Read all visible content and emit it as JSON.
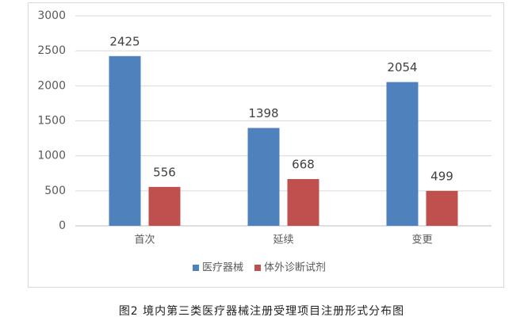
{
  "chart_data": {
    "type": "bar",
    "caption": "图2 境内第三类医疗器械注册受理项目注册形式分布图",
    "categories": [
      "首次",
      "延续",
      "变更"
    ],
    "series": [
      {
        "name": "医疗器械",
        "color": "#4f81bd",
        "values": [
          2425,
          1398,
          2054
        ]
      },
      {
        "name": "体外诊断试剂",
        "color": "#c0504d",
        "values": [
          556,
          668,
          499
        ]
      }
    ],
    "ylim": [
      0,
      3000
    ],
    "yticks": [
      0,
      500,
      1000,
      1500,
      2000,
      2500,
      3000
    ],
    "grid": true,
    "legend": "bottom"
  }
}
